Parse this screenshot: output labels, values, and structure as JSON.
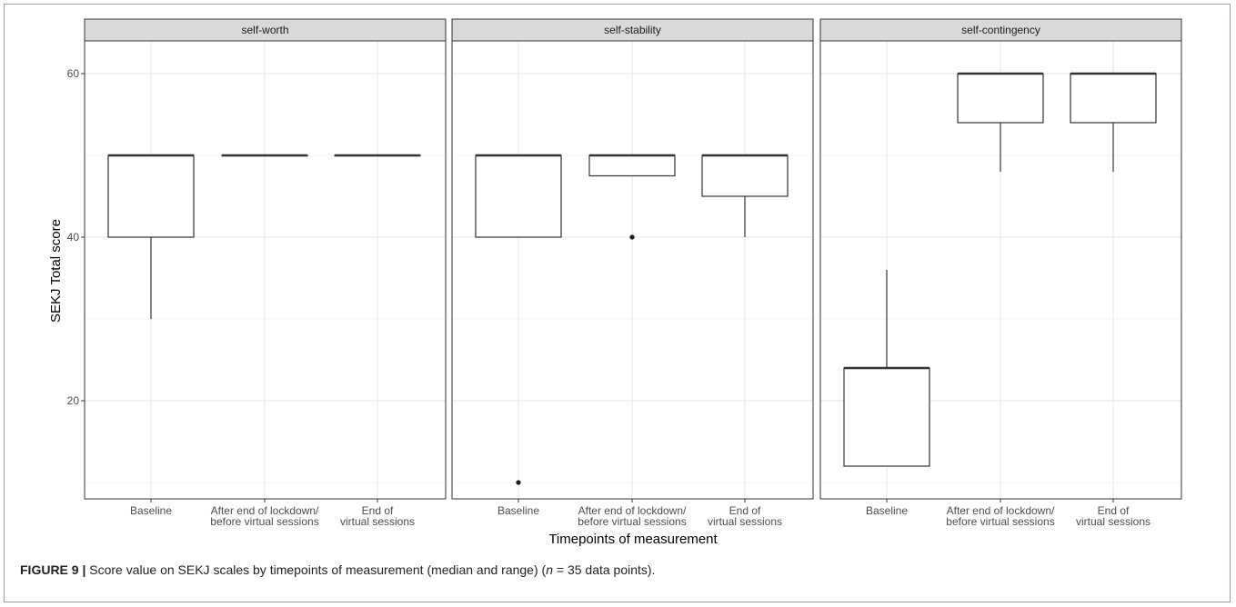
{
  "caption": {
    "label": "FIGURE 9 |",
    "text_before_n": " Score value on SEKJ scales by timepoints of measurement (median and range) (",
    "n_symbol": "n",
    "text_after_n": " = 35 data points)."
  },
  "chart_data": {
    "type": "boxplot",
    "ylabel": "SEKJ Total score",
    "xlabel": "Timepoints of measurement",
    "ylim": [
      8,
      64
    ],
    "yticks": [
      20,
      40,
      60
    ],
    "grid": true,
    "categories": [
      [
        "Baseline"
      ],
      [
        "After end of lockdown/",
        "before virtual sessions"
      ],
      [
        "End of",
        "virtual sessions"
      ]
    ],
    "panels": [
      {
        "title": "self-worth",
        "boxes": [
          {
            "category": "Baseline",
            "min": 30,
            "q1": 40,
            "median": 50,
            "q3": 50,
            "max": 50,
            "outliers": []
          },
          {
            "category": "After end of lockdown/ before virtual sessions",
            "min": 50,
            "q1": 50,
            "median": 50,
            "q3": 50,
            "max": 50,
            "outliers": []
          },
          {
            "category": "End of virtual sessions",
            "min": 50,
            "q1": 50,
            "median": 50,
            "q3": 50,
            "max": 50,
            "outliers": []
          }
        ]
      },
      {
        "title": "self-stability",
        "boxes": [
          {
            "category": "Baseline",
            "min": 40,
            "q1": 40,
            "median": 50,
            "q3": 50,
            "max": 50,
            "outliers": [
              10
            ]
          },
          {
            "category": "After end of lockdown/ before virtual sessions",
            "min": 47.5,
            "q1": 47.5,
            "median": 50,
            "q3": 50,
            "max": 50,
            "outliers": [
              40
            ]
          },
          {
            "category": "End of virtual sessions",
            "min": 40,
            "q1": 45,
            "median": 50,
            "q3": 50,
            "max": 50,
            "outliers": []
          }
        ]
      },
      {
        "title": "self-contingency",
        "boxes": [
          {
            "category": "Baseline",
            "min": 12,
            "q1": 12,
            "median": 24,
            "q3": 24,
            "max": 36,
            "outliers": []
          },
          {
            "category": "After end of lockdown/ before virtual sessions",
            "min": 48,
            "q1": 54,
            "median": 60,
            "q3": 60,
            "max": 60,
            "outliers": []
          },
          {
            "category": "End of virtual sessions",
            "min": 48,
            "q1": 54,
            "median": 60,
            "q3": 60,
            "max": 60,
            "outliers": []
          }
        ]
      }
    ]
  }
}
